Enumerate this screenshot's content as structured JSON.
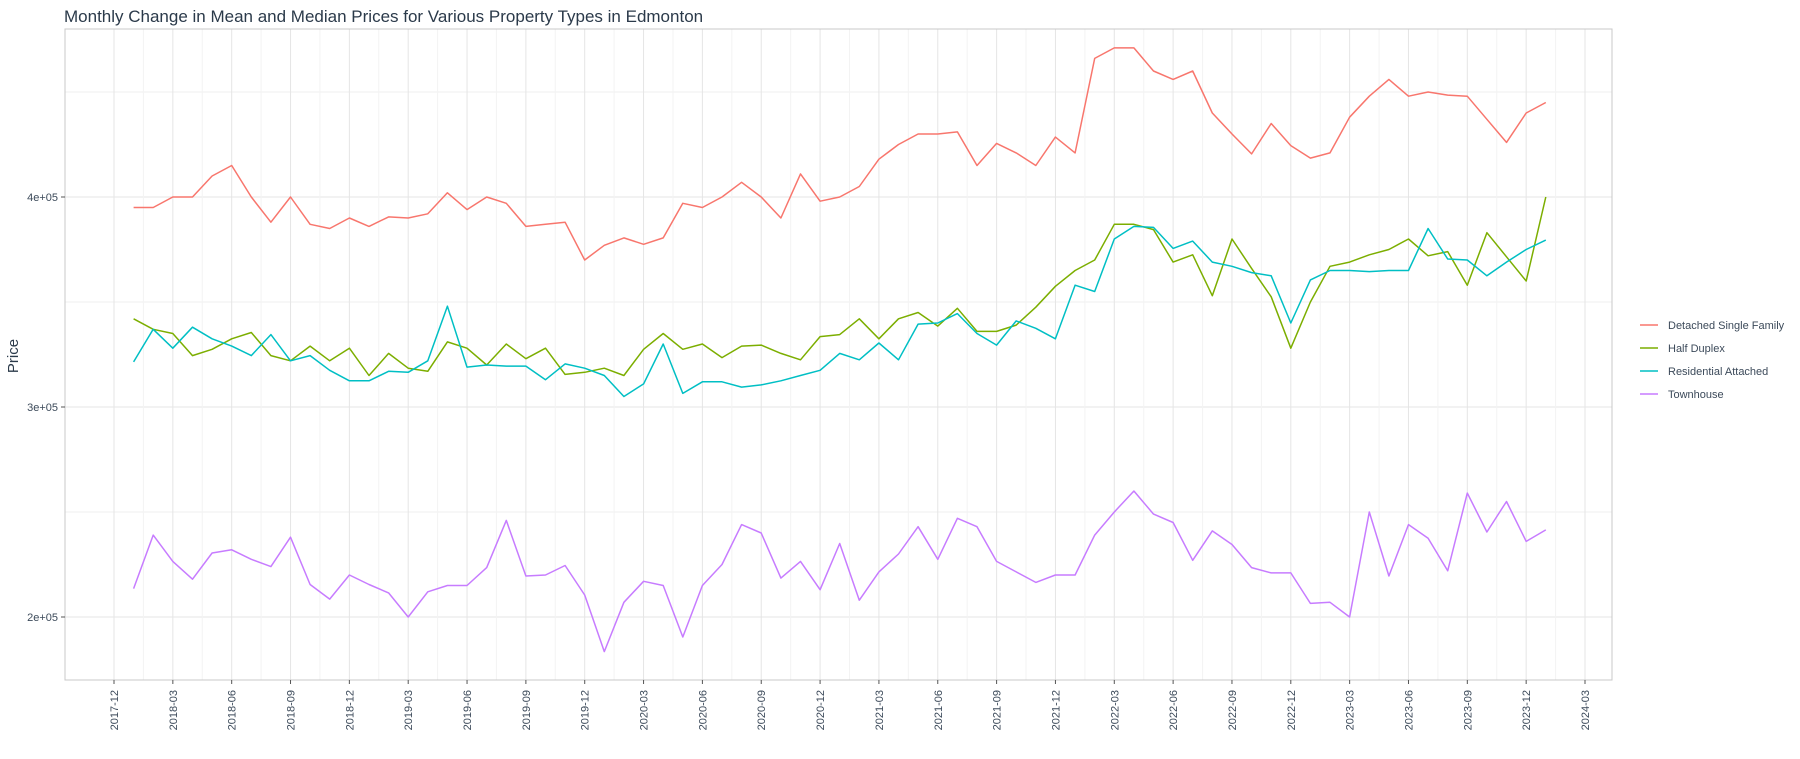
{
  "chart_data": {
    "type": "line",
    "title": "Monthly Change in Mean and Median Prices for Various Property Types in Edmonton",
    "xlabel": "",
    "ylabel": "Price",
    "ylim": [
      170000,
      480000
    ],
    "y_ticks": [
      {
        "value": 200000,
        "label": "2e+05"
      },
      {
        "value": 300000,
        "label": "3e+05"
      },
      {
        "value": 400000,
        "label": "4e+05"
      }
    ],
    "y_minor_grid": [
      250000,
      350000,
      450000
    ],
    "x_ticks": [
      "2017-12",
      "2018-03",
      "2018-06",
      "2018-09",
      "2018-12",
      "2019-03",
      "2019-06",
      "2019-09",
      "2019-12",
      "2020-03",
      "2020-06",
      "2020-09",
      "2020-12",
      "2021-03",
      "2021-06",
      "2021-09",
      "2021-12",
      "2022-03",
      "2022-06",
      "2022-09",
      "2022-12",
      "2023-03",
      "2023-06",
      "2023-09",
      "2023-12",
      "2024-03"
    ],
    "x_start": "2018-01",
    "grid": true,
    "legend_position": "right",
    "colors": {
      "title": "#2b3a4a",
      "axis_text": "#3c4a5a",
      "grid": "#e5e5e5",
      "panel_border": "#c8c8c8"
    },
    "series": [
      {
        "name": "Detached Single Family",
        "color": "#F8766D",
        "values": [
          395000,
          395000,
          400000,
          400000,
          410000,
          415000,
          400000,
          388000,
          400000,
          387000,
          385000,
          390000,
          386000,
          390500,
          390000,
          392000,
          402000,
          394000,
          400000,
          397000,
          386000,
          387000,
          388000,
          370000,
          377000,
          380500,
          377500,
          380500,
          397000,
          395000,
          400000,
          407000,
          400000,
          390000,
          411000,
          398000,
          400000,
          405000,
          418000,
          425000,
          430000,
          430000,
          431000,
          415000,
          425500,
          421000,
          415000,
          428500,
          421000,
          466000,
          471000,
          471000,
          460000,
          456000,
          460000,
          440000,
          430000,
          420500,
          435000,
          424500,
          418500,
          421000,
          438000,
          448000,
          456000,
          448000,
          450000,
          448500,
          448000,
          437000,
          426000,
          440000,
          445000
        ]
      },
      {
        "name": "Half Duplex",
        "color": "#7CAE00",
        "values": [
          342000,
          337000,
          335000,
          324500,
          327500,
          332500,
          335500,
          324500,
          322000,
          329000,
          322000,
          328000,
          315000,
          325500,
          318500,
          317000,
          331000,
          328000,
          320000,
          330000,
          323000,
          328000,
          315500,
          316500,
          318500,
          315000,
          327500,
          335000,
          327500,
          330000,
          323500,
          329000,
          329500,
          325500,
          322500,
          333500,
          334500,
          342000,
          332500,
          342000,
          345000,
          338500,
          347000,
          336000,
          336000,
          339000,
          347500,
          357500,
          365000,
          370000,
          387000,
          387000,
          384500,
          369000,
          372500,
          353000,
          380000,
          366000,
          352500,
          328000,
          350000,
          367000,
          369000,
          372500,
          375000,
          380000,
          372000,
          374000,
          358000,
          383000,
          371500,
          360000,
          400000
        ]
      },
      {
        "name": "Residential Attached",
        "color": "#00BFC4",
        "values": [
          321500,
          337000,
          328000,
          338000,
          332500,
          329000,
          324500,
          334500,
          322000,
          324500,
          317500,
          312500,
          312500,
          317000,
          316500,
          322000,
          348000,
          319000,
          320000,
          319500,
          319500,
          313000,
          320500,
          318500,
          315000,
          305000,
          311000,
          330000,
          306500,
          312000,
          312000,
          309500,
          310500,
          312500,
          315000,
          317500,
          325500,
          322500,
          330500,
          322500,
          339500,
          340000,
          344500,
          335000,
          329500,
          341000,
          337500,
          332500,
          358000,
          355000,
          380000,
          386000,
          385500,
          375500,
          379000,
          369000,
          367000,
          364000,
          362500,
          340000,
          360500,
          365000,
          365000,
          364500,
          365000,
          365000,
          385000,
          370500,
          370000,
          362500,
          369000,
          375000,
          379500
        ]
      },
      {
        "name": "Townhouse",
        "color": "#C77CFF",
        "values": [
          213500,
          239000,
          226500,
          218000,
          230500,
          232000,
          227500,
          224000,
          238000,
          215500,
          208500,
          220000,
          215500,
          211500,
          200000,
          212000,
          215000,
          215000,
          223500,
          246000,
          219500,
          220000,
          224500,
          210500,
          183500,
          207000,
          217000,
          215000,
          190500,
          215000,
          225000,
          244000,
          240000,
          218500,
          226500,
          213000,
          235000,
          208000,
          221500,
          230000,
          243000,
          227500,
          247000,
          243000,
          226500,
          221500,
          216500,
          220000,
          220000,
          239000,
          250000,
          260000,
          249000,
          245000,
          227000,
          241000,
          234500,
          223500,
          221000,
          221000,
          206500,
          207000,
          200000,
          250000,
          219500,
          244000,
          237500,
          222000,
          259000,
          240500,
          255000,
          236000,
          241500
        ]
      }
    ]
  }
}
